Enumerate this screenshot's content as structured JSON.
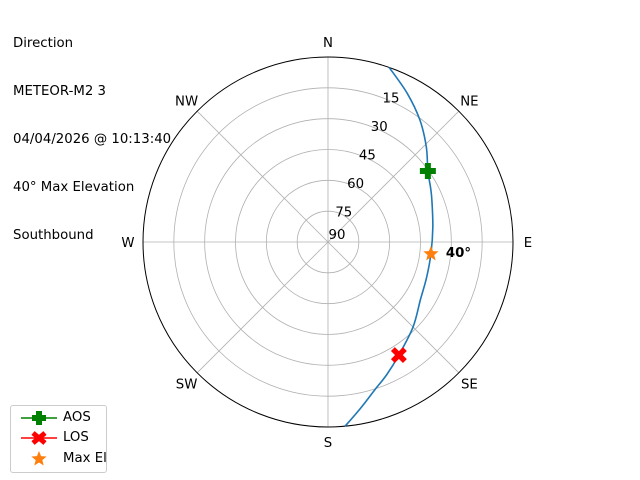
{
  "title_lines": [
    "Direction",
    "METEOR-M2 3",
    "04/04/2026 @ 10:13:40",
    "40° Max Elevation",
    "Southbound"
  ],
  "chart_data": {
    "type": "polar",
    "theta_zero": "N",
    "theta_direction": "clockwise",
    "direction_labels": [
      {
        "az": 0,
        "label": "N"
      },
      {
        "az": 45,
        "label": "NE"
      },
      {
        "az": 90,
        "label": "E"
      },
      {
        "az": 135,
        "label": "SE"
      },
      {
        "az": 180,
        "label": "S"
      },
      {
        "az": 225,
        "label": "SW"
      },
      {
        "az": 270,
        "label": "W"
      },
      {
        "az": 315,
        "label": "NW"
      }
    ],
    "radial_axis": "elevation (deg), 90 at center, 0 at edge",
    "rlim": [
      90,
      0
    ],
    "radial_ticks": [
      "15",
      "30",
      "45",
      "60",
      "75",
      "90"
    ],
    "grid": true,
    "track": {
      "color": "#1f77b4",
      "az": [
        19.3,
        28,
        37,
        46,
        54.6,
        62,
        68,
        82,
        96.6,
        110,
        122,
        135,
        147.9,
        156,
        162.4,
        169,
        174.7
      ],
      "el": [
        0,
        8,
        15.7,
        23.5,
        30.4,
        33.5,
        35.5,
        38.5,
        39.6,
        39,
        37,
        31.5,
        25.1,
        19.5,
        14.6,
        7.5,
        0
      ]
    },
    "markers": [
      {
        "name": "AOS",
        "az": 54.6,
        "el": 30.4,
        "color": "#008000",
        "shape": "plus"
      },
      {
        "name": "LOS",
        "az": 147.9,
        "el": 25.1,
        "color": "#ff0000",
        "shape": "x"
      },
      {
        "name": "Max El",
        "az": 96.6,
        "el": 39.6,
        "color": "#ff7f0e",
        "shape": "star"
      }
    ],
    "annotation": {
      "text": "40°",
      "az": 96.6,
      "el": 39.6
    },
    "legend": {
      "placement": "lower-left",
      "entries": [
        "AOS",
        "LOS",
        "Max El"
      ]
    }
  }
}
